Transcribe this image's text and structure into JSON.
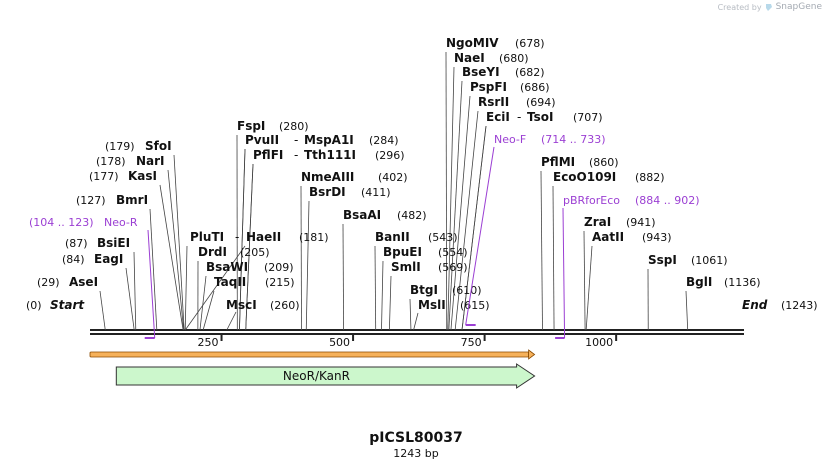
{
  "credit": {
    "prefix": "Created by",
    "brand": "SnapGene"
  },
  "plasmid": {
    "name": "pICSL80037",
    "size_label": "1243 bp",
    "length": 1243
  },
  "ends": {
    "start_label": "Start",
    "start_pos": "(0)",
    "end_label": "End",
    "end_pos": "(1243)"
  },
  "ticks": [
    {
      "value": 250,
      "label": "250"
    },
    {
      "value": 500,
      "label": "500"
    },
    {
      "value": 750,
      "label": "750"
    },
    {
      "value": 1000,
      "label": "1000"
    }
  ],
  "sites": [
    {
      "name": "AseI",
      "pos": "(29)",
      "bp": 29
    },
    {
      "name": "EagI",
      "pos": "(84)",
      "bp": 84
    },
    {
      "name": "BsiEI",
      "pos": "(87)",
      "bp": 87
    },
    {
      "name": "BmrI",
      "pos": "(127)",
      "bp": 127
    },
    {
      "name": "KasI",
      "pos": "(177)",
      "bp": 177
    },
    {
      "name": "NarI",
      "pos": "(178)",
      "bp": 178
    },
    {
      "name": "SfoI",
      "pos": "(179)",
      "bp": 179
    },
    {
      "name": "PluTI",
      "pos": "(181)",
      "bp": 181
    },
    {
      "name": "DrdI",
      "pos": "(205)",
      "bp": 205
    },
    {
      "name": "BsaWI",
      "pos": "(209)",
      "bp": 209
    },
    {
      "name": "TaqII",
      "pos": "(215)",
      "bp": 215
    },
    {
      "name": "MscI",
      "pos": "(260)",
      "bp": 260
    },
    {
      "name": "HaeII",
      "pos": "(181)",
      "bp": 181
    },
    {
      "name": "FspI",
      "pos": "(280)",
      "bp": 280
    },
    {
      "name": "PvuII",
      "pos": "(284)",
      "bp": 284
    },
    {
      "name": "MspA1I",
      "pos": "(284)",
      "bp": 284
    },
    {
      "name": "PflFI",
      "pos": "(296)",
      "bp": 296
    },
    {
      "name": "Tth111I",
      "pos": "(296)",
      "bp": 296
    },
    {
      "name": "NmeAIII",
      "pos": "(402)",
      "bp": 402
    },
    {
      "name": "BsrDI",
      "pos": "(411)",
      "bp": 411
    },
    {
      "name": "BsaAI",
      "pos": "(482)",
      "bp": 482
    },
    {
      "name": "BanII",
      "pos": "(543)",
      "bp": 543
    },
    {
      "name": "BpuEI",
      "pos": "(554)",
      "bp": 554
    },
    {
      "name": "SmlI",
      "pos": "(569)",
      "bp": 569
    },
    {
      "name": "BtgI",
      "pos": "(610)",
      "bp": 610
    },
    {
      "name": "MslI",
      "pos": "(615)",
      "bp": 615
    },
    {
      "name": "NgoMIV",
      "pos": "(678)",
      "bp": 678
    },
    {
      "name": "NaeI",
      "pos": "(680)",
      "bp": 680
    },
    {
      "name": "BseYI",
      "pos": "(682)",
      "bp": 682
    },
    {
      "name": "PspFI",
      "pos": "(686)",
      "bp": 686
    },
    {
      "name": "RsrII",
      "pos": "(694)",
      "bp": 694
    },
    {
      "name": "EciI",
      "pos": "(707)",
      "bp": 707
    },
    {
      "name": "TsoI",
      "pos": "(707)",
      "bp": 707
    },
    {
      "name": "PflMI",
      "pos": "(860)",
      "bp": 860
    },
    {
      "name": "EcoO109I",
      "pos": "(882)",
      "bp": 882
    },
    {
      "name": "ZraI",
      "pos": "(941)",
      "bp": 941
    },
    {
      "name": "AatII",
      "pos": "(943)",
      "bp": 943
    },
    {
      "name": "SspI",
      "pos": "(1061)",
      "bp": 1061
    },
    {
      "name": "BglI",
      "pos": "(1136)",
      "bp": 1136
    }
  ],
  "primers": [
    {
      "name": "Neo-R",
      "range": "(104 .. 123)",
      "start": 104,
      "end": 123,
      "direction": "reverse"
    },
    {
      "name": "Neo-F",
      "range": "(714 .. 733)",
      "start": 714,
      "end": 733,
      "direction": "forward"
    },
    {
      "name": "pBRforEco",
      "range": "(884 .. 902)",
      "start": 884,
      "end": 902,
      "direction": "reverse"
    }
  ],
  "features": [
    {
      "name": "NeoR/KanR",
      "start": 50,
      "end": 845,
      "direction": "forward"
    }
  ],
  "orf": {
    "start": 0,
    "end": 845
  },
  "colors": {
    "feature_fill": "#ccf7cc",
    "feature_stroke": "#333333",
    "orf_fill": "#f6b15a",
    "orf_stroke": "#8a4a00",
    "primer": "#9b3fd3",
    "backbone": "#222222"
  }
}
